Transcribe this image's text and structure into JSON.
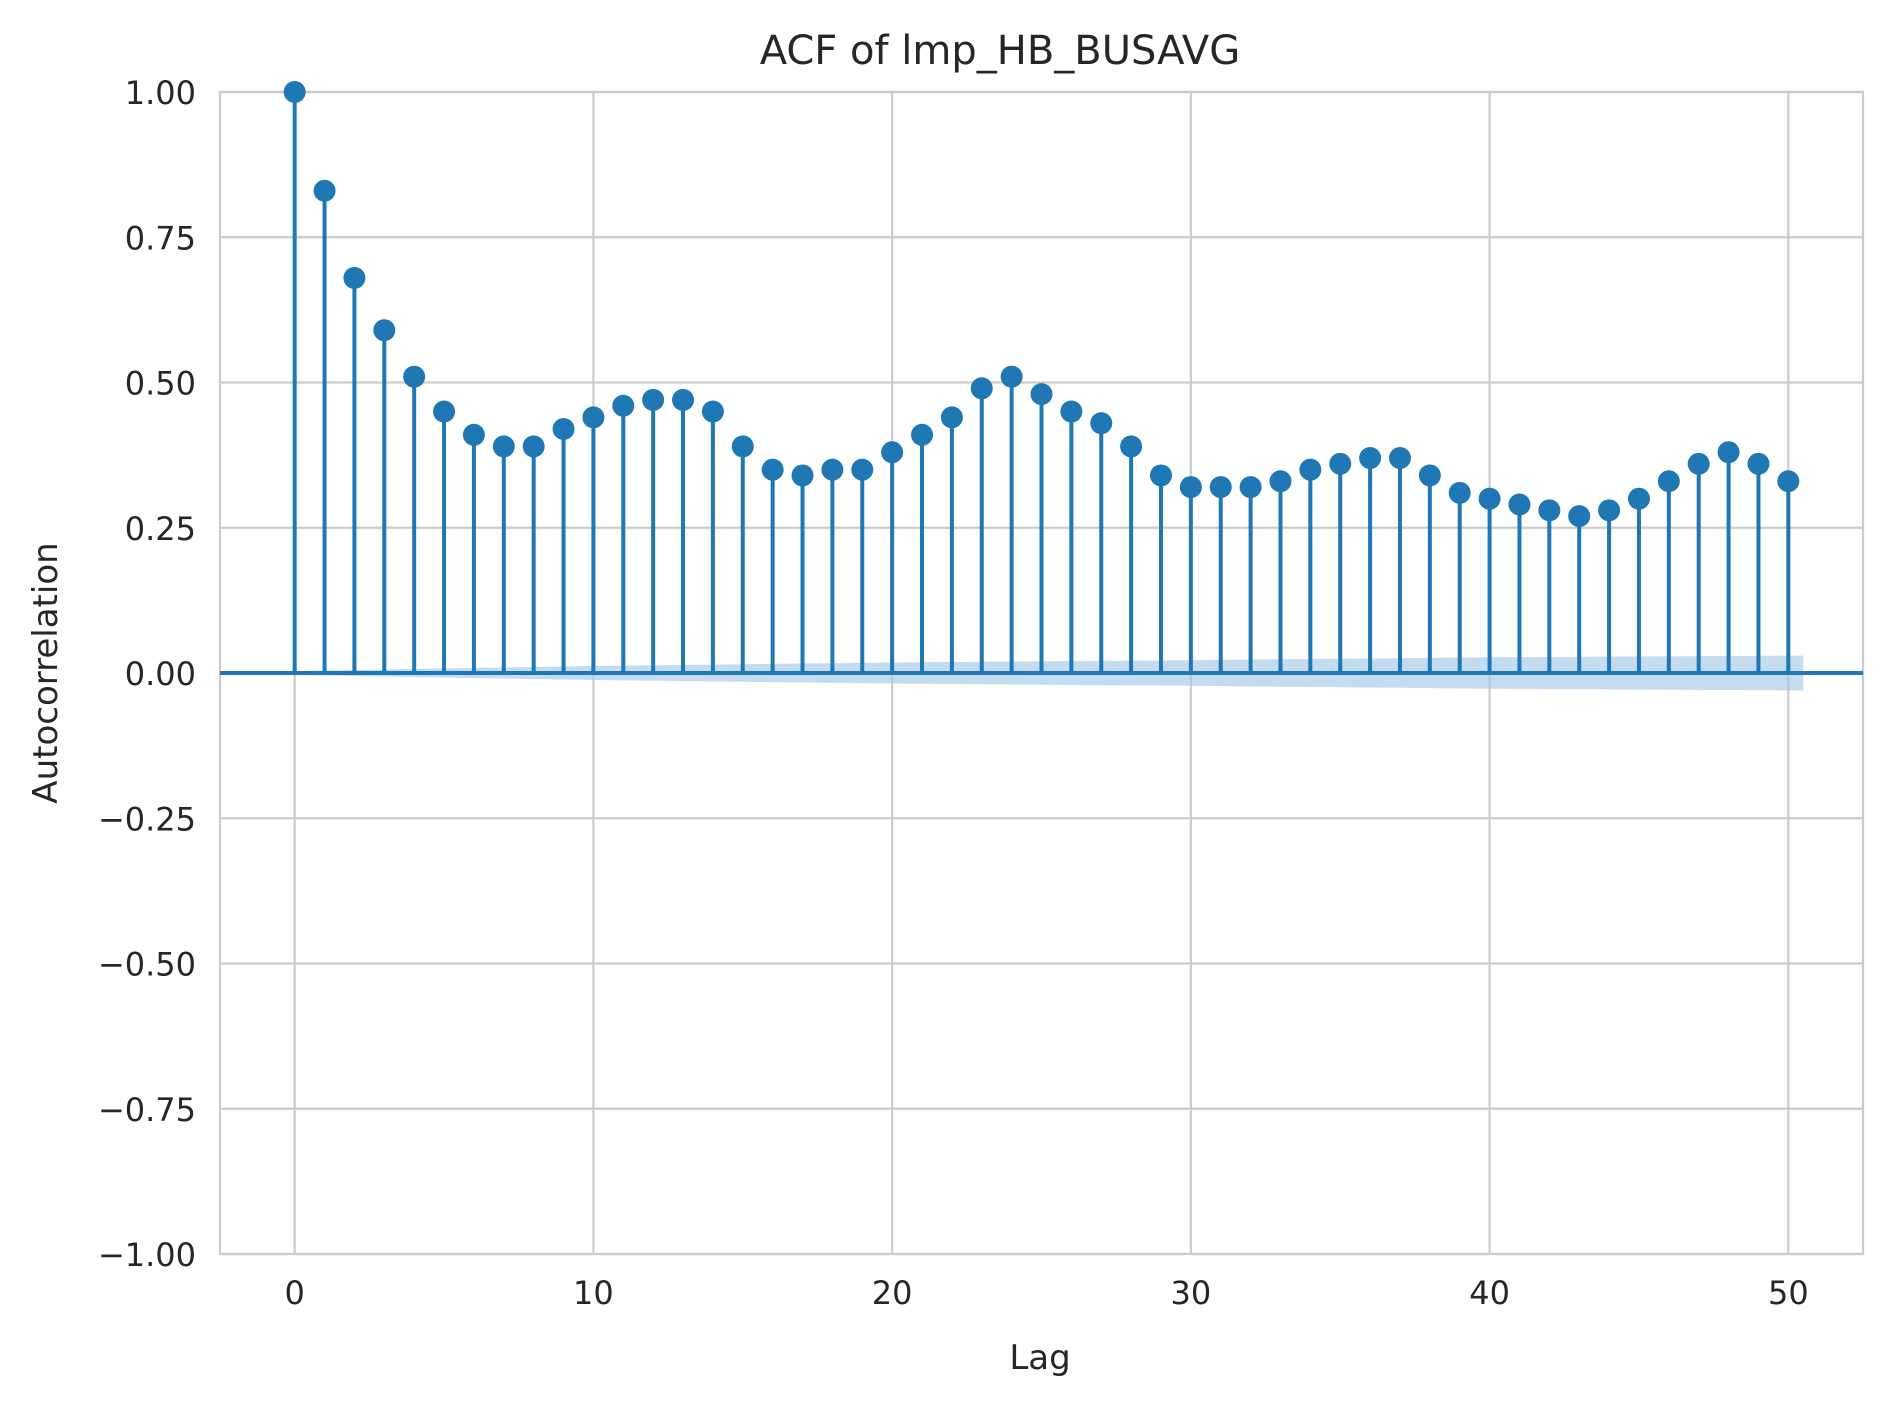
{
  "chart_data": {
    "type": "stem",
    "title": "ACF of lmp_HB_BUSAVG",
    "xlabel": "Lag",
    "ylabel": "Autocorrelation",
    "xlim": [
      -2.5,
      52.5
    ],
    "ylim": [
      -1.0,
      1.0
    ],
    "xticks": [
      0,
      10,
      20,
      30,
      40,
      50
    ],
    "xtick_labels": [
      "0",
      "10",
      "20",
      "30",
      "40",
      "50"
    ],
    "yticks": [
      1.0,
      0.75,
      0.5,
      0.25,
      0.0,
      -0.25,
      -0.5,
      -0.75,
      -1.0
    ],
    "ytick_labels": [
      "1.00",
      "0.75",
      "0.50",
      "0.25",
      "0.00",
      "−0.25",
      "−0.50",
      "−0.75",
      "−1.00"
    ],
    "grid": true,
    "colors": {
      "stem": "#1f77b4",
      "confidence_band": "#a6c8e8",
      "grid": "#cccccc",
      "text": "#262626"
    },
    "lags": [
      0,
      1,
      2,
      3,
      4,
      5,
      6,
      7,
      8,
      9,
      10,
      11,
      12,
      13,
      14,
      15,
      16,
      17,
      18,
      19,
      20,
      21,
      22,
      23,
      24,
      25,
      26,
      27,
      28,
      29,
      30,
      31,
      32,
      33,
      34,
      35,
      36,
      37,
      38,
      39,
      40,
      41,
      42,
      43,
      44,
      45,
      46,
      47,
      48,
      49,
      50
    ],
    "values": [
      1.0,
      0.83,
      0.68,
      0.59,
      0.51,
      0.45,
      0.41,
      0.39,
      0.39,
      0.42,
      0.44,
      0.46,
      0.47,
      0.47,
      0.45,
      0.39,
      0.35,
      0.34,
      0.35,
      0.35,
      0.38,
      0.41,
      0.44,
      0.49,
      0.51,
      0.48,
      0.45,
      0.43,
      0.39,
      0.34,
      0.32,
      0.32,
      0.32,
      0.33,
      0.35,
      0.36,
      0.37,
      0.37,
      0.34,
      0.31,
      0.3,
      0.29,
      0.28,
      0.27,
      0.28,
      0.3,
      0.33,
      0.36,
      0.38,
      0.36,
      0.33
    ],
    "confidence_band": {
      "lags": [
        0.5,
        10,
        20,
        30,
        40,
        50.5
      ],
      "upper": [
        0.004,
        0.012,
        0.018,
        0.022,
        0.027,
        0.03
      ],
      "lower": [
        -0.004,
        -0.012,
        -0.018,
        -0.022,
        -0.027,
        -0.03
      ]
    }
  }
}
